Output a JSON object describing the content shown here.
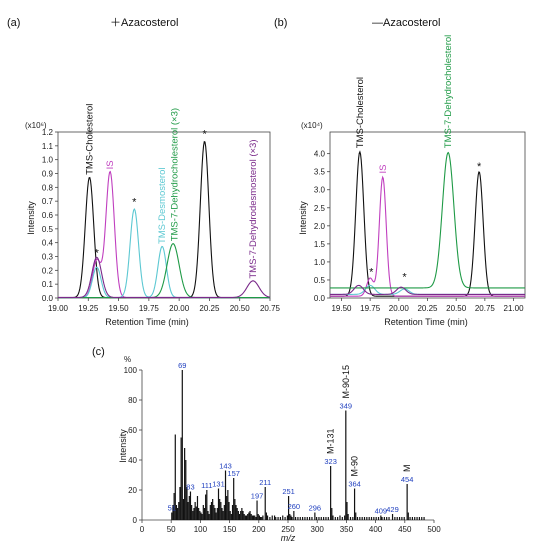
{
  "colors": {
    "tms_cholesterol": "#111111",
    "is": "#c03fbf",
    "tms_desmosterol": "#5cc8d2",
    "tms_7_dehydrocholesterol": "#1f9a46",
    "tms_7_dehydrodesmosterol": "#7a2a8a",
    "peak_labels_mz": "#1f3fbf",
    "spectrum": "#111111"
  },
  "chart_data": [
    {
      "panel": "(a)",
      "type": "line",
      "subtitle": "＋Azacosterol",
      "xlabel": "Retention Time (min)",
      "ylabel": "Intensity",
      "y_multiplier": "(x10⁶)",
      "xlim": [
        19.0,
        20.75
      ],
      "ylim": [
        0,
        1.2
      ],
      "xticks": [
        "19.00",
        "19.25",
        "19.50",
        "19.75",
        "20.00",
        "20.25",
        "20.50",
        "20.75"
      ],
      "yticks": [
        "0.0",
        "0.1",
        "0.2",
        "0.3",
        "0.4",
        "0.5",
        "0.6",
        "0.7",
        "0.8",
        "0.9",
        "1.0",
        "1.1",
        "1.2"
      ],
      "series": [
        {
          "name": "TMS-Cholesterol",
          "color_key": "tms_cholesterol",
          "baseline": 0.003,
          "peaks": [
            {
              "x": 19.26,
              "y": 0.87,
              "w": 0.035
            },
            {
              "x": 20.21,
              "y": 1.13,
              "w": 0.035
            }
          ]
        },
        {
          "name": "IS",
          "color_key": "is",
          "baseline": 0.003,
          "peaks": [
            {
              "x": 19.32,
              "y": 0.27,
              "w": 0.035
            },
            {
              "x": 19.43,
              "y": 0.91,
              "w": 0.035
            }
          ]
        },
        {
          "name": "TMS-Desmosterol",
          "color_key": "tms_desmosterol",
          "baseline": 0.003,
          "peaks": [
            {
              "x": 19.32,
              "y": 0.22,
              "w": 0.035
            },
            {
              "x": 19.63,
              "y": 0.64,
              "w": 0.035
            },
            {
              "x": 19.86,
              "y": 0.37,
              "w": 0.035
            }
          ]
        },
        {
          "name": "TMS-7-Dehydrocholesterol (×3)",
          "color_key": "tms_7_dehydrocholesterol",
          "baseline": 0.003,
          "peaks": [
            {
              "x": 19.95,
              "y": 0.39,
              "w": 0.05
            }
          ]
        },
        {
          "name": "TMS-7-Dehydrodesmosterol (×3)",
          "color_key": "tms_7_dehydrodesmosterol",
          "baseline": 0.004,
          "peaks": [
            {
              "x": 19.32,
              "y": 0.29,
              "w": 0.04
            },
            {
              "x": 20.61,
              "y": 0.12,
              "w": 0.05
            }
          ]
        }
      ],
      "annotations": [
        {
          "text": "*",
          "x": 19.32,
          "y": 0.3
        },
        {
          "text": "*",
          "x": 19.63,
          "y": 0.67
        },
        {
          "text": "*",
          "x": 20.21,
          "y": 1.16
        }
      ],
      "peak_labels": [
        {
          "text": "TMS-Cholesterol",
          "series": 0,
          "x": 19.26,
          "y": 0.89
        },
        {
          "text": "IS",
          "series": 1,
          "x": 19.43,
          "y": 0.93
        },
        {
          "text": "TMS-Desmosterol",
          "series": 2,
          "x": 19.86,
          "y": 0.39
        },
        {
          "text": "TMS-7-Dehydrocholesterol (×3)",
          "series": 3,
          "x": 19.96,
          "y": 0.41
        },
        {
          "text": "TMS-7-Dehydrodesmosterol (×3)",
          "series": 4,
          "x": 20.61,
          "y": 0.14
        }
      ]
    },
    {
      "panel": "(b)",
      "type": "line",
      "subtitle": "—Azacosterol",
      "xlabel": "Retention Time (min)",
      "ylabel": "Intensity",
      "y_multiplier": "(x10⁴)",
      "xlim": [
        19.4,
        21.1
      ],
      "ylim": [
        0,
        4.6
      ],
      "xticks": [
        "19.50",
        "19.75",
        "20.00",
        "20.25",
        "20.50",
        "20.75",
        "21.00"
      ],
      "yticks": [
        "0.0",
        "0.5",
        "1.0",
        "1.5",
        "2.0",
        "2.5",
        "3.0",
        "3.5",
        "4.0"
      ],
      "series": [
        {
          "name": "TMS-Cholesterol",
          "color_key": "tms_cholesterol",
          "baseline": 0.05,
          "peaks": [
            {
              "x": 19.66,
              "y": 4.0,
              "w": 0.035
            },
            {
              "x": 20.7,
              "y": 3.45,
              "w": 0.035
            }
          ]
        },
        {
          "name": "IS",
          "color_key": "is",
          "baseline": 0.05,
          "peaks": [
            {
              "x": 19.75,
              "y": 0.5,
              "w": 0.03
            },
            {
              "x": 19.86,
              "y": 3.3,
              "w": 0.03
            }
          ]
        },
        {
          "name": "TMS-Desmosterol",
          "color_key": "tms_desmosterol",
          "baseline": 0.1,
          "peaks": [
            {
              "x": 19.75,
              "y": 0.25,
              "w": 0.04
            },
            {
              "x": 20.05,
              "y": 0.15,
              "w": 0.04
            }
          ]
        },
        {
          "name": "TMS-7-Dehydrocholesterol",
          "color_key": "tms_7_dehydrocholesterol",
          "baseline": 0.28,
          "peaks": [
            {
              "x": 20.43,
              "y": 3.75,
              "w": 0.05
            }
          ]
        },
        {
          "name": "TMS-7-Dehydrodesmosterol",
          "color_key": "tms_7_dehydrodesmosterol",
          "baseline": 0.1,
          "peaks": [
            {
              "x": 19.65,
              "y": 0.25,
              "w": 0.04
            },
            {
              "x": 20.02,
              "y": 0.2,
              "w": 0.04
            }
          ]
        }
      ],
      "annotations": [
        {
          "text": "*",
          "x": 19.76,
          "y": 0.62
        },
        {
          "text": "*",
          "x": 20.05,
          "y": 0.48
        },
        {
          "text": "*",
          "x": 20.7,
          "y": 3.55
        }
      ],
      "peak_labels": [
        {
          "text": "TMS-Cholesterol",
          "series": 0,
          "x": 19.66,
          "y": 4.15
        },
        {
          "text": "IS",
          "series": 1,
          "x": 19.86,
          "y": 3.45
        },
        {
          "text": "TMS-7-Dehydrocholesterol",
          "series": 3,
          "x": 20.43,
          "y": 4.15
        }
      ]
    },
    {
      "panel": "(c)",
      "type": "bar",
      "xlabel": "m/z",
      "ylabel": "Intensity",
      "y_unit_label": "%",
      "xlim": [
        0,
        500
      ],
      "ylim": [
        0,
        100
      ],
      "xticks": [
        "0",
        "50",
        "100",
        "150",
        "200",
        "250",
        "300",
        "350",
        "400",
        "450",
        "500"
      ],
      "yticks": [
        "0",
        "20",
        "40",
        "60",
        "80",
        "100"
      ],
      "bars": [
        [
          51,
          5
        ],
        [
          53,
          10
        ],
        [
          55,
          18
        ],
        [
          57,
          57
        ],
        [
          59,
          10
        ],
        [
          61,
          8
        ],
        [
          63,
          12
        ],
        [
          65,
          22
        ],
        [
          67,
          55
        ],
        [
          69,
          100
        ],
        [
          71,
          14
        ],
        [
          73,
          48
        ],
        [
          75,
          40
        ],
        [
          77,
          22
        ],
        [
          79,
          12
        ],
        [
          81,
          16
        ],
        [
          83,
          19
        ],
        [
          85,
          10
        ],
        [
          87,
          6
        ],
        [
          89,
          8
        ],
        [
          91,
          12
        ],
        [
          93,
          9
        ],
        [
          95,
          16
        ],
        [
          97,
          8
        ],
        [
          99,
          6
        ],
        [
          101,
          5
        ],
        [
          103,
          4
        ],
        [
          105,
          10
        ],
        [
          107,
          8
        ],
        [
          109,
          17
        ],
        [
          111,
          20
        ],
        [
          113,
          6
        ],
        [
          115,
          4
        ],
        [
          117,
          10
        ],
        [
          119,
          12
        ],
        [
          121,
          14
        ],
        [
          123,
          10
        ],
        [
          125,
          8
        ],
        [
          127,
          5
        ],
        [
          129,
          8
        ],
        [
          131,
          21
        ],
        [
          133,
          14
        ],
        [
          135,
          12
        ],
        [
          137,
          8
        ],
        [
          139,
          6
        ],
        [
          141,
          10
        ],
        [
          143,
          33
        ],
        [
          145,
          16
        ],
        [
          147,
          20
        ],
        [
          149,
          12
        ],
        [
          151,
          6
        ],
        [
          153,
          4
        ],
        [
          155,
          10
        ],
        [
          157,
          28
        ],
        [
          159,
          14
        ],
        [
          161,
          10
        ],
        [
          163,
          8
        ],
        [
          165,
          6
        ],
        [
          167,
          4
        ],
        [
          169,
          6
        ],
        [
          171,
          8
        ],
        [
          173,
          6
        ],
        [
          175,
          4
        ],
        [
          177,
          3
        ],
        [
          179,
          3
        ],
        [
          181,
          4
        ],
        [
          183,
          5
        ],
        [
          185,
          6
        ],
        [
          187,
          4
        ],
        [
          189,
          3
        ],
        [
          191,
          3
        ],
        [
          193,
          3
        ],
        [
          195,
          2
        ],
        [
          197,
          13
        ],
        [
          199,
          4
        ],
        [
          201,
          3
        ],
        [
          203,
          2
        ],
        [
          205,
          2
        ],
        [
          207,
          3
        ],
        [
          211,
          22
        ],
        [
          213,
          5
        ],
        [
          215,
          3
        ],
        [
          219,
          2
        ],
        [
          223,
          3
        ],
        [
          227,
          3
        ],
        [
          229,
          2
        ],
        [
          233,
          2
        ],
        [
          237,
          2
        ],
        [
          241,
          3
        ],
        [
          245,
          2
        ],
        [
          249,
          3
        ],
        [
          251,
          16
        ],
        [
          253,
          4
        ],
        [
          255,
          3
        ],
        [
          257,
          2
        ],
        [
          260,
          6
        ],
        [
          263,
          2
        ],
        [
          267,
          2
        ],
        [
          271,
          2
        ],
        [
          275,
          2
        ],
        [
          279,
          2
        ],
        [
          283,
          2
        ],
        [
          287,
          2
        ],
        [
          291,
          2
        ],
        [
          296,
          5
        ],
        [
          299,
          2
        ],
        [
          303,
          2
        ],
        [
          307,
          2
        ],
        [
          311,
          2
        ],
        [
          315,
          2
        ],
        [
          319,
          2
        ],
        [
          323,
          36
        ],
        [
          325,
          8
        ],
        [
          327,
          3
        ],
        [
          331,
          2
        ],
        [
          335,
          2
        ],
        [
          339,
          3
        ],
        [
          343,
          2
        ],
        [
          347,
          3
        ],
        [
          349,
          73
        ],
        [
          351,
          12
        ],
        [
          353,
          4
        ],
        [
          357,
          2
        ],
        [
          361,
          2
        ],
        [
          364,
          21
        ],
        [
          366,
          5
        ],
        [
          369,
          2
        ],
        [
          373,
          2
        ],
        [
          377,
          2
        ],
        [
          381,
          2
        ],
        [
          385,
          2
        ],
        [
          389,
          2
        ],
        [
          393,
          2
        ],
        [
          397,
          2
        ],
        [
          401,
          2
        ],
        [
          405,
          2
        ],
        [
          409,
          3
        ],
        [
          411,
          2
        ],
        [
          415,
          2
        ],
        [
          419,
          2
        ],
        [
          423,
          2
        ],
        [
          429,
          4
        ],
        [
          433,
          2
        ],
        [
          437,
          2
        ],
        [
          441,
          2
        ],
        [
          445,
          2
        ],
        [
          449,
          2
        ],
        [
          454,
          24
        ],
        [
          456,
          5
        ],
        [
          459,
          2
        ],
        [
          463,
          2
        ],
        [
          467,
          2
        ],
        [
          471,
          2
        ],
        [
          475,
          2
        ],
        [
          479,
          2
        ],
        [
          483,
          2
        ]
      ],
      "mz_labels": [
        {
          "text": "69",
          "x": 69,
          "y": 100
        },
        {
          "text": "83",
          "x": 83,
          "y": 19
        },
        {
          "text": "111",
          "x": 111,
          "y": 20
        },
        {
          "text": "131",
          "x": 131,
          "y": 21
        },
        {
          "text": "143",
          "x": 143,
          "y": 33
        },
        {
          "text": "157",
          "x": 157,
          "y": 28
        },
        {
          "text": "197",
          "x": 197,
          "y": 13
        },
        {
          "text": "211",
          "x": 211,
          "y": 22
        },
        {
          "text": "251",
          "x": 251,
          "y": 16
        },
        {
          "text": "260",
          "x": 260,
          "y": 6
        },
        {
          "text": "296",
          "x": 296,
          "y": 5
        },
        {
          "text": "323",
          "x": 323,
          "y": 36
        },
        {
          "text": "349",
          "x": 349,
          "y": 73
        },
        {
          "text": "364",
          "x": 364,
          "y": 21
        },
        {
          "text": "409",
          "x": 409,
          "y": 3
        },
        {
          "text": "429",
          "x": 429,
          "y": 4
        },
        {
          "text": "454",
          "x": 454,
          "y": 24
        },
        {
          "text": "51",
          "x": 51,
          "y": 5
        }
      ],
      "fragment_labels": [
        {
          "text": "M-90-15",
          "x": 349,
          "y": 73
        },
        {
          "text": "M-131",
          "x": 323,
          "y": 36
        },
        {
          "text": "M-90",
          "x": 364,
          "y": 21
        },
        {
          "text": "M",
          "x": 454,
          "y": 24
        }
      ]
    }
  ]
}
